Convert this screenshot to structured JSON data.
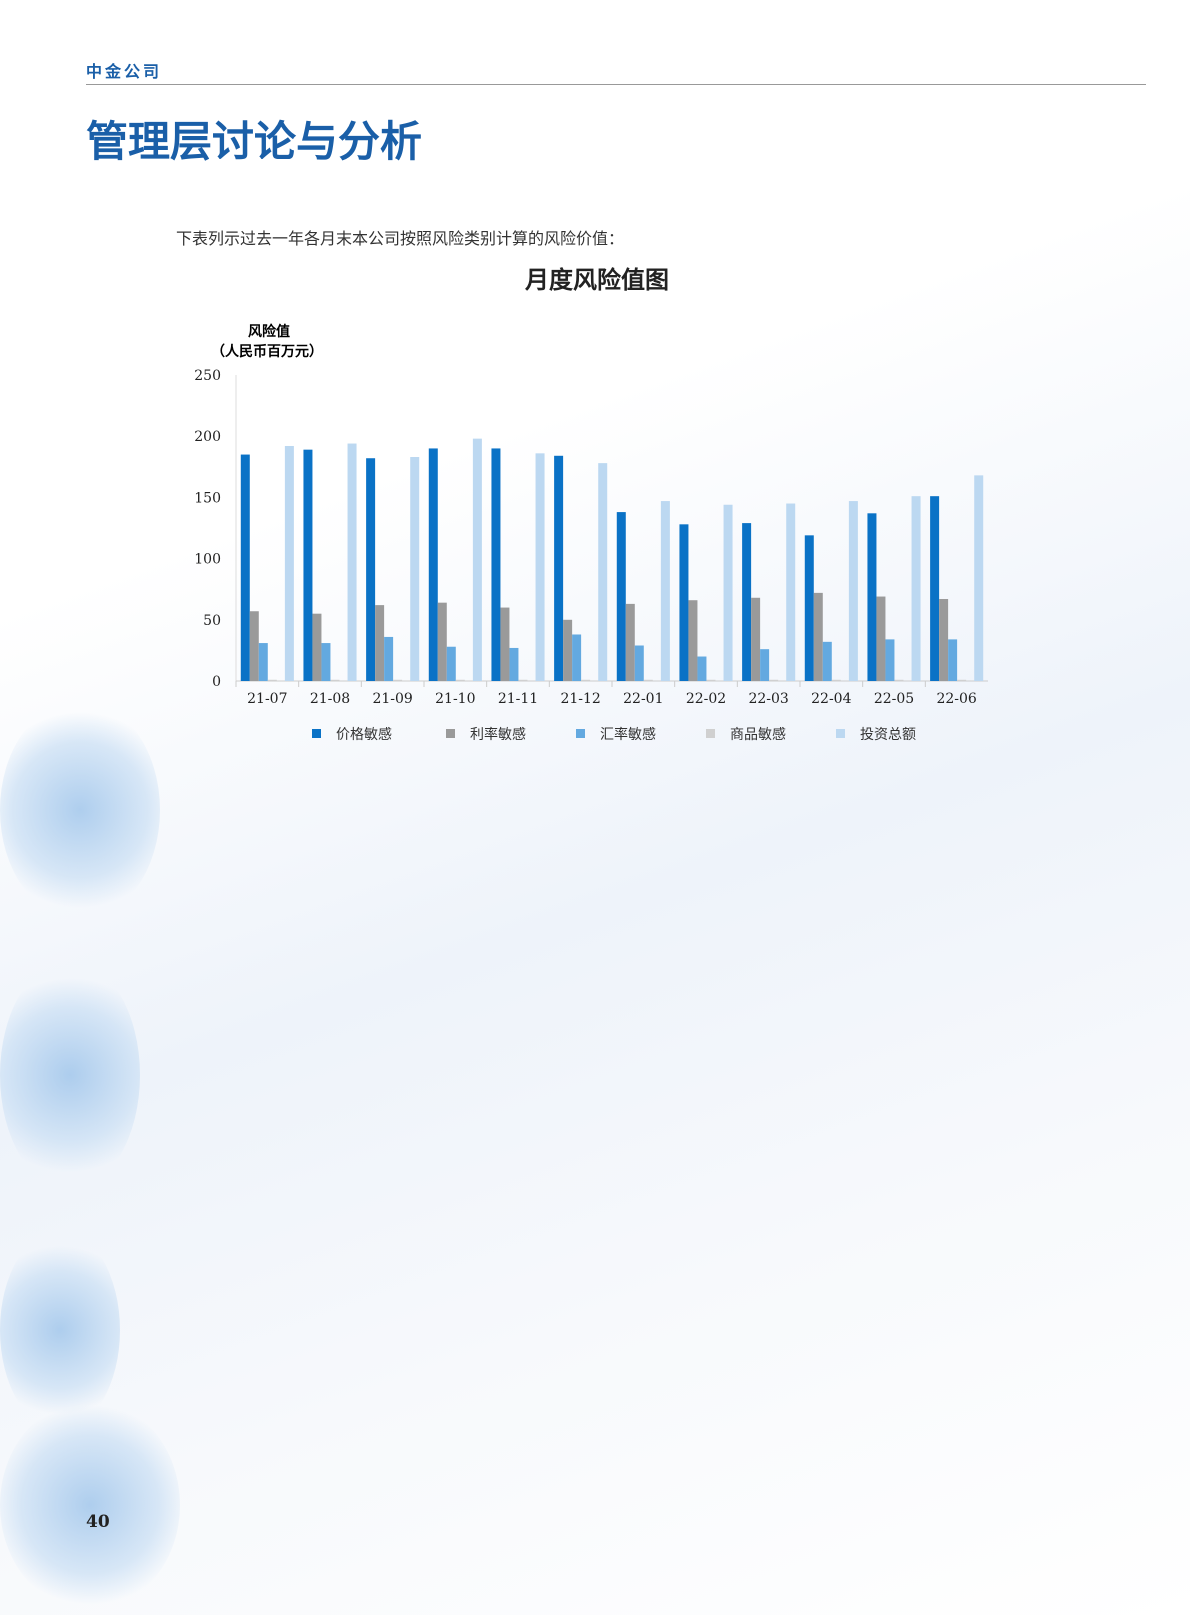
{
  "header": {
    "company": "中金公司",
    "title": "管理层讨论与分析"
  },
  "intro": "下表列示过去一年各月末本公司按照风险类别计算的风险价值：",
  "page_number": "40",
  "chart_data": {
    "type": "bar",
    "title": "月度风险值图",
    "ylabel": "风险值",
    "yunit": "（人民币百万元）",
    "ylim": [
      0,
      250
    ],
    "yticks": [
      0,
      50,
      100,
      150,
      200,
      250
    ],
    "grid": false,
    "legend": "bottom",
    "categories": [
      "21-07",
      "21-08",
      "21-09",
      "21-10",
      "21-11",
      "21-12",
      "22-01",
      "22-02",
      "22-03",
      "22-04",
      "22-05",
      "22-06"
    ],
    "series": [
      {
        "name": "价格敏感",
        "color": "#0a72c6",
        "values": [
          185,
          189,
          182,
          190,
          190,
          184,
          138,
          128,
          129,
          119,
          137,
          151
        ]
      },
      {
        "name": "利率敏感",
        "color": "#9a9a9a",
        "values": [
          57,
          55,
          62,
          64,
          60,
          50,
          63,
          66,
          68,
          72,
          69,
          67
        ]
      },
      {
        "name": "汇率敏感",
        "color": "#63a9e0",
        "values": [
          31,
          31,
          36,
          28,
          27,
          38,
          29,
          20,
          26,
          32,
          34,
          34
        ]
      },
      {
        "name": "商品敏感",
        "color": "#d0d0d0",
        "values": [
          1,
          1,
          1,
          1,
          1,
          1,
          1,
          1,
          1,
          1,
          1,
          1
        ]
      },
      {
        "name": "投资总额",
        "color": "#bcd8f1",
        "values": [
          192,
          194,
          183,
          198,
          186,
          178,
          147,
          144,
          145,
          147,
          151,
          168
        ]
      }
    ]
  }
}
